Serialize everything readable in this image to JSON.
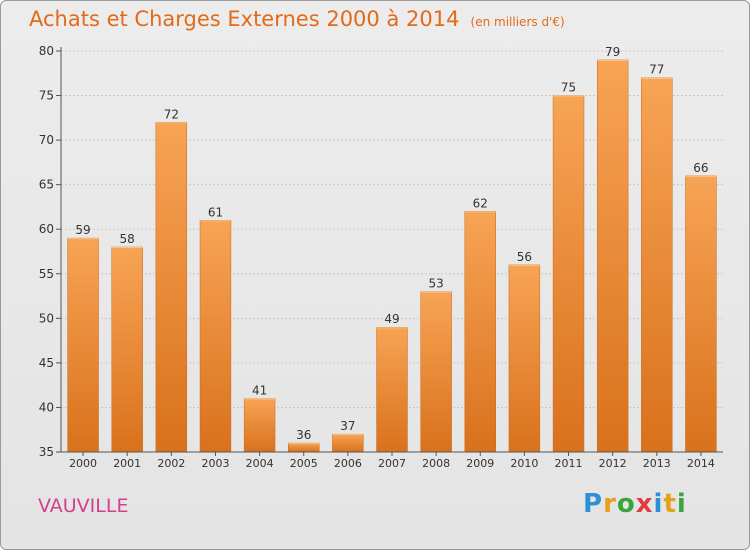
{
  "header": {
    "title": "Achats et Charges Externes 2000 à 2014",
    "subtitle": "(en milliers d'€)"
  },
  "footer": {
    "place": "VAUVILLE",
    "brand": "Proxiti",
    "brand_letters": [
      "P",
      "r",
      "o",
      "x",
      "i",
      "t",
      "i"
    ],
    "brand_colors": [
      "#2f8fd6",
      "#e5a11a",
      "#3aa63a",
      "#e23c3c",
      "#2f8fd6",
      "#e5a11a",
      "#3aa63a"
    ]
  },
  "colors": {
    "bar_light": "#f7a455",
    "bar_dark": "#d9711c",
    "grid": "#c9c9c9",
    "text": "#333333",
    "accent": "#e36b18"
  },
  "chart_data": {
    "type": "bar",
    "title": "Achats et Charges Externes 2000 à 2014",
    "subtitle": "(en milliers d'€)",
    "categories": [
      "2000",
      "2001",
      "2002",
      "2003",
      "2004",
      "2005",
      "2006",
      "2007",
      "2008",
      "2009",
      "2010",
      "2011",
      "2012",
      "2013",
      "2014"
    ],
    "values": [
      59,
      58,
      72,
      61,
      41,
      36,
      37,
      49,
      53,
      62,
      56,
      75,
      79,
      77,
      66
    ],
    "ylim": [
      35,
      80
    ],
    "yticks": [
      35,
      40,
      45,
      50,
      55,
      60,
      65,
      70,
      75,
      80
    ],
    "grid": true,
    "data_labels": true
  }
}
